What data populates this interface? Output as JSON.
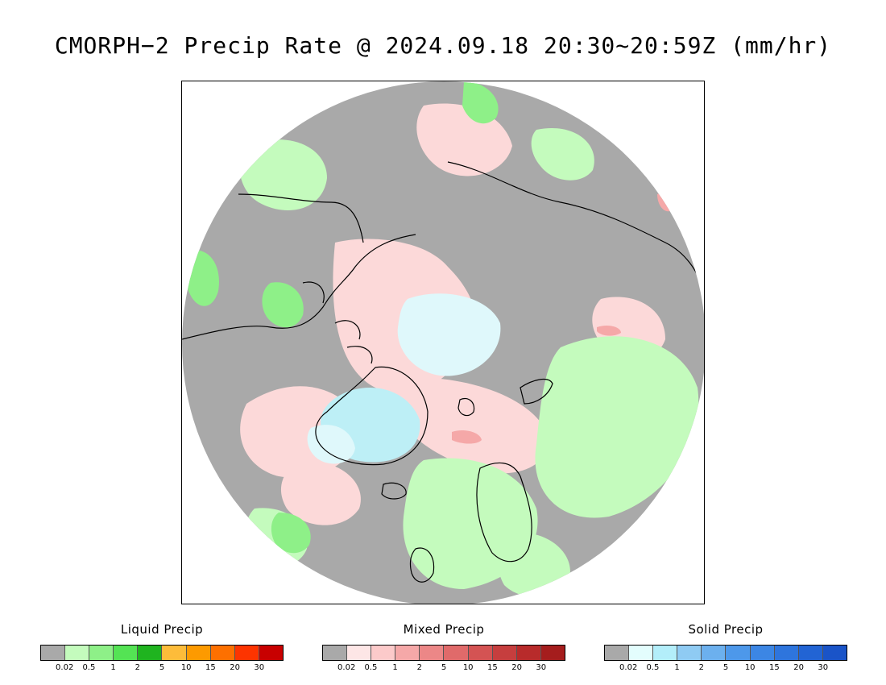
{
  "title": "CMORPH−2 Precip Rate @ 2024.09.18 20:30~20:59Z (mm/hr)",
  "map": {
    "projection": "polar-stereographic-north",
    "background_color": "#a9a9a9",
    "coastline_color": "#000000",
    "colors": {
      "liquid_light": "#c4fbbd",
      "liquid_mid": "#8ef088",
      "mixed_light": "#fcd9d9",
      "solid_light": "#dff8fb",
      "solid_mid": "#bdeff6"
    }
  },
  "legends": [
    {
      "title": "Liquid Precip",
      "colors": [
        "#a9a9a9",
        "#c4fbbd",
        "#8ef088",
        "#54e354",
        "#1fb41f",
        "#fdbc3a",
        "#fd9a00",
        "#fd7000",
        "#fd3400",
        "#c80000"
      ],
      "ticks": [
        "0.02",
        "0.5",
        "1",
        "2",
        "5",
        "10",
        "15",
        "20",
        "30"
      ]
    },
    {
      "title": "Mixed Precip",
      "colors": [
        "#a9a9a9",
        "#fde6e6",
        "#fccaca",
        "#f5a8a8",
        "#ec8787",
        "#e06a6a",
        "#d45353",
        "#c63e3e",
        "#b82b2b",
        "#a51d1d"
      ],
      "ticks": [
        "0.02",
        "0.5",
        "1",
        "2",
        "5",
        "10",
        "15",
        "20",
        "30"
      ]
    },
    {
      "title": "Solid Precip",
      "colors": [
        "#a9a9a9",
        "#e3fdfd",
        "#b3eefa",
        "#8fcbf3",
        "#6cb0ee",
        "#4d98ea",
        "#3c86e4",
        "#2e75dd",
        "#2264d4",
        "#1a54c8"
      ],
      "ticks": [
        "0.02",
        "0.5",
        "1",
        "2",
        "5",
        "10",
        "15",
        "20",
        "30"
      ]
    }
  ]
}
